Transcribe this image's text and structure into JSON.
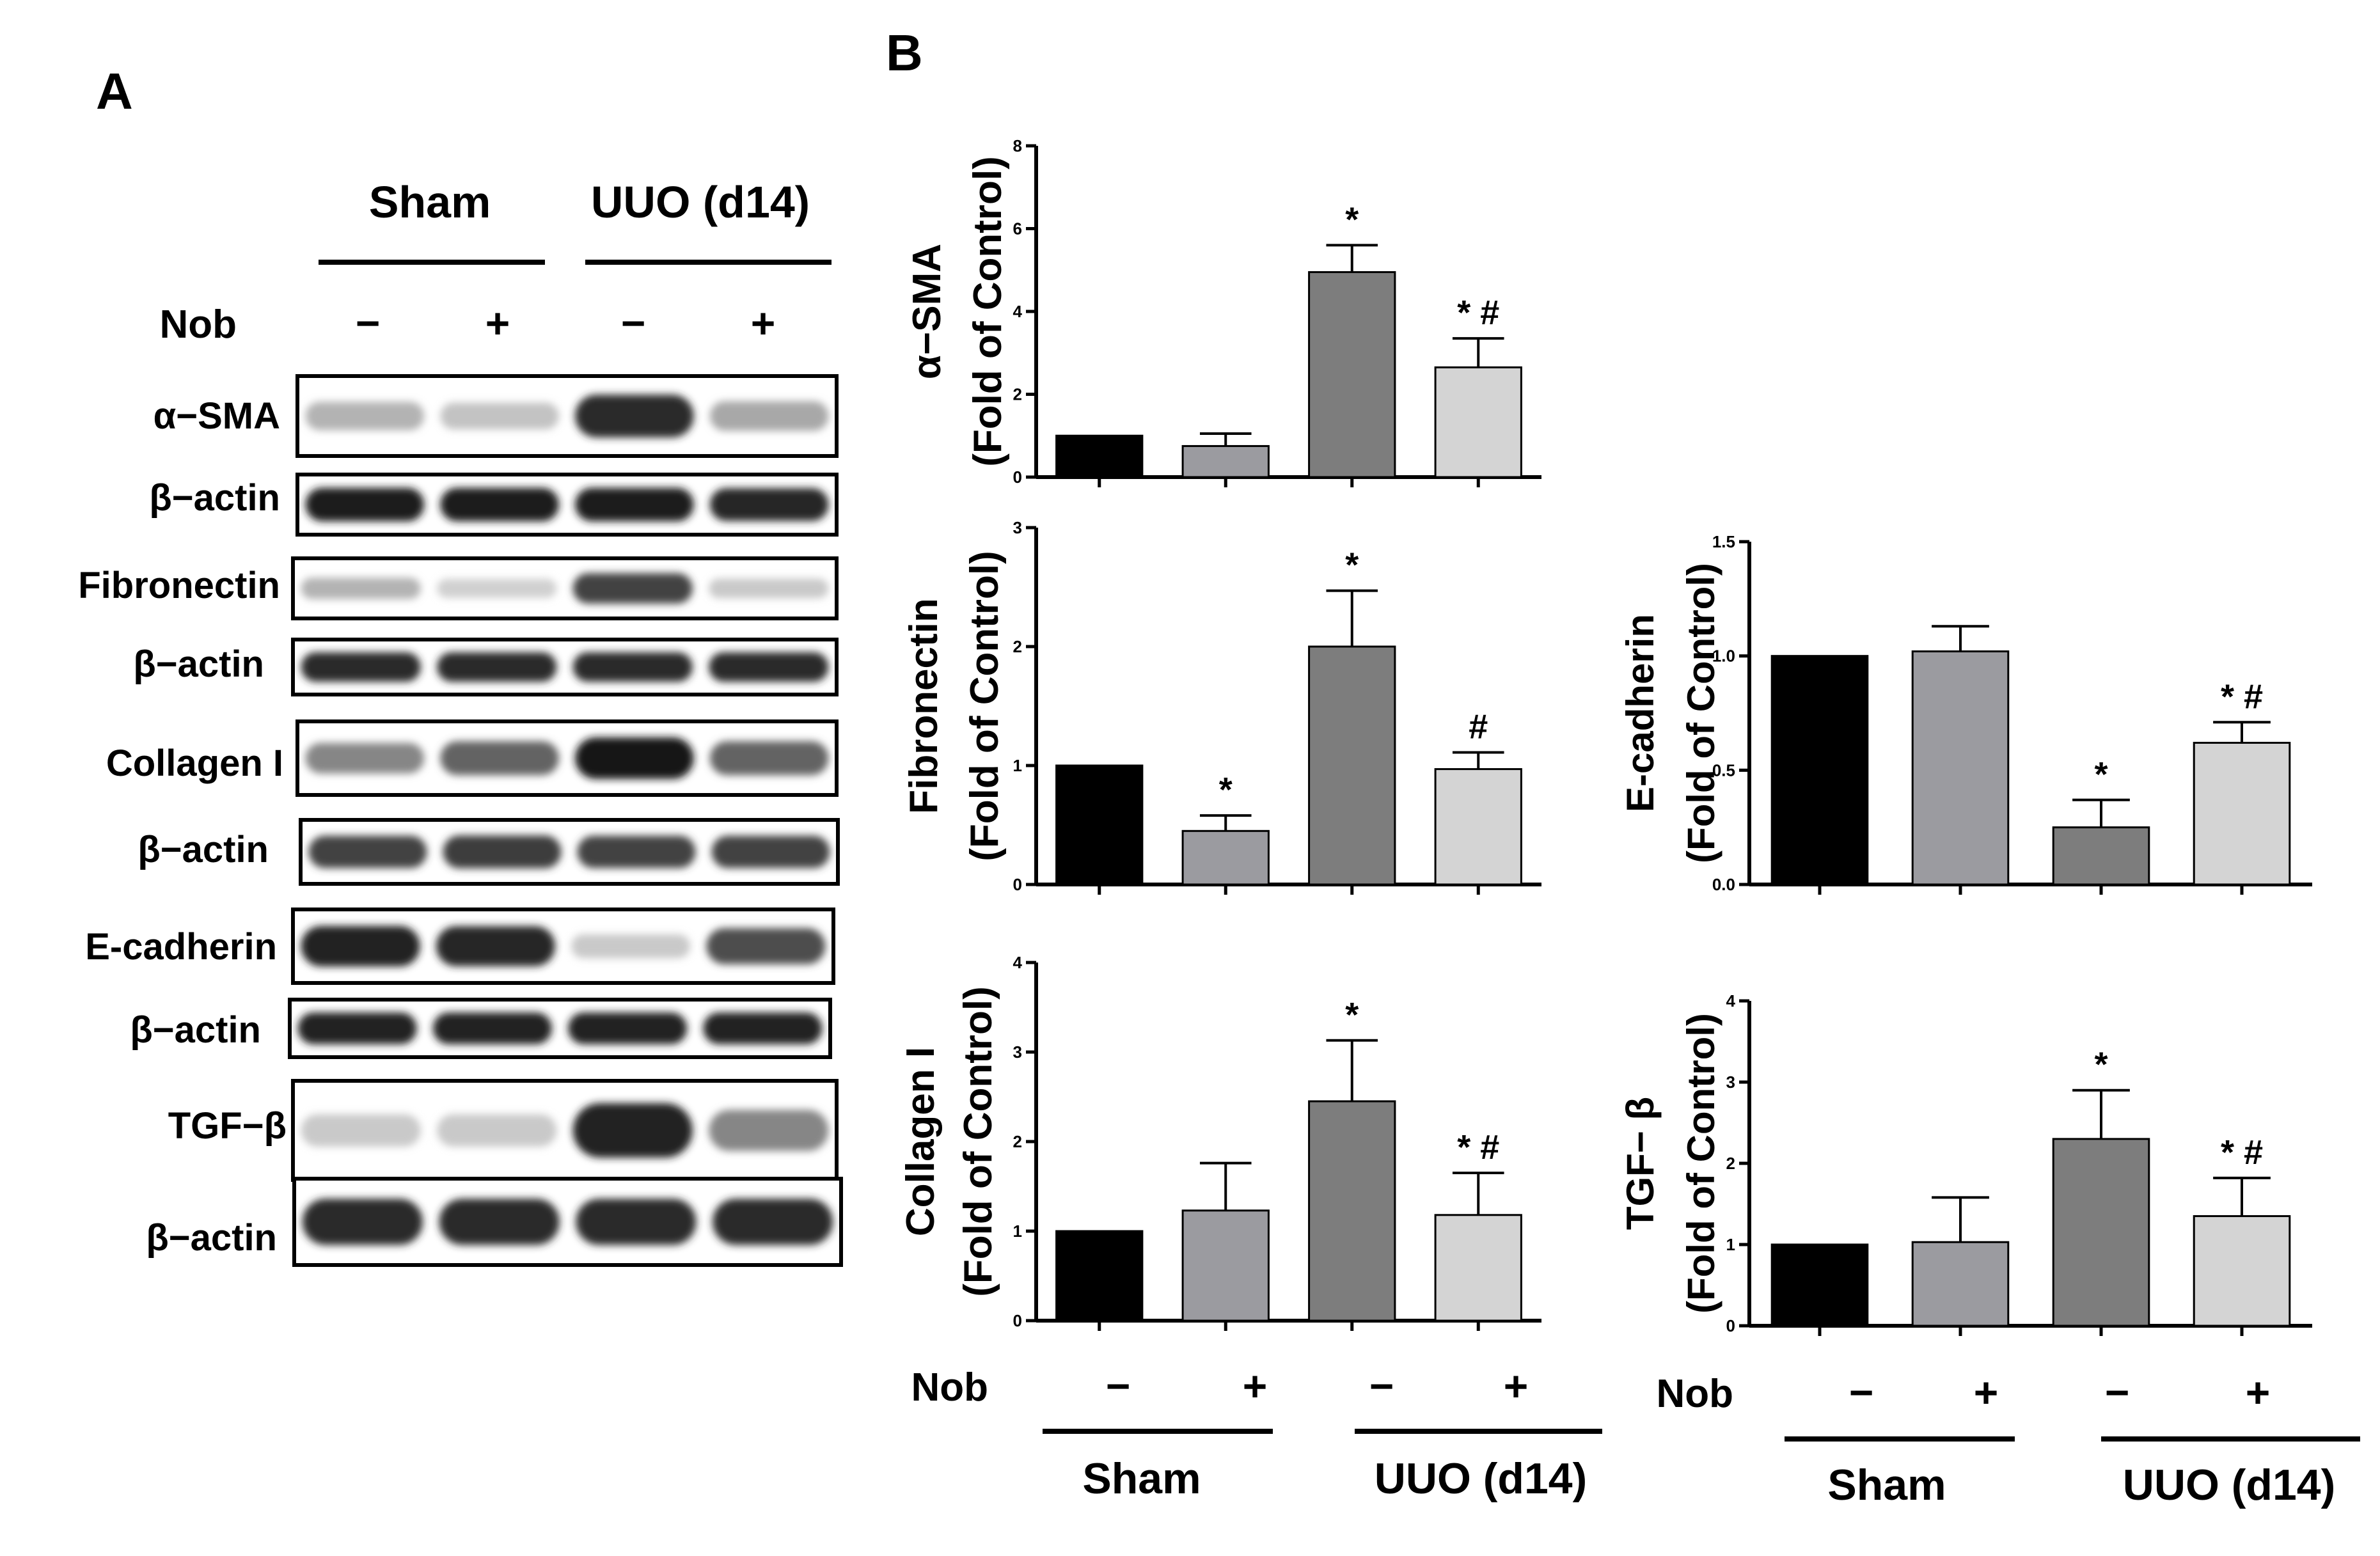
{
  "panel_a": {
    "label": "A",
    "group_labels": [
      "Sham",
      "UUO (d14)"
    ],
    "treatment_label": "Nob",
    "treatment_signs": [
      "−",
      "+",
      "−",
      "+"
    ],
    "blots": [
      {
        "label": "α−SMA",
        "intensity": [
          0.25,
          0.18,
          0.85,
          0.3
        ]
      },
      {
        "label": "β−actin",
        "intensity": [
          0.92,
          0.92,
          0.92,
          0.88
        ]
      },
      {
        "label": "Fibronectin",
        "intensity": [
          0.25,
          0.12,
          0.75,
          0.15
        ]
      },
      {
        "label": "β−actin",
        "intensity": [
          0.85,
          0.85,
          0.85,
          0.85
        ]
      },
      {
        "label": "Collagen I",
        "intensity": [
          0.45,
          0.6,
          0.95,
          0.6
        ]
      },
      {
        "label": "β−actin",
        "intensity": [
          0.75,
          0.78,
          0.75,
          0.75
        ]
      },
      {
        "label": "E-cadherin",
        "intensity": [
          0.9,
          0.88,
          0.15,
          0.7
        ]
      },
      {
        "label": "β−actin",
        "intensity": [
          0.9,
          0.9,
          0.9,
          0.9
        ]
      },
      {
        "label": "TGF−β",
        "intensity": [
          0.15,
          0.15,
          0.9,
          0.45
        ]
      },
      {
        "label": "β−actin",
        "intensity": [
          0.85,
          0.85,
          0.85,
          0.85
        ]
      }
    ]
  },
  "panel_b": {
    "label": "B",
    "treatment_label": "Nob",
    "treatment_signs": [
      "−",
      "+",
      "−",
      "+"
    ],
    "group_labels": [
      "Sham",
      "UUO (d14)"
    ]
  },
  "colors": {
    "sham_control": "#000000",
    "sham_nob": "#9b9ba0",
    "uuo_control": "#7d7d7d",
    "uuo_nob": "#d4d4d4"
  },
  "chart_data": [
    {
      "type": "bar",
      "ylabel": [
        "α−SMA",
        "(Fold of Control)"
      ],
      "ylim": [
        0,
        8
      ],
      "yticks": [
        "0",
        "2",
        "4",
        "6",
        "8"
      ],
      "categories": [
        "Sham −",
        "Sham +",
        "UUO (d14) −",
        "UUO (d14) +"
      ],
      "values": [
        1.0,
        0.75,
        4.95,
        2.65
      ],
      "errors": [
        0.0,
        0.3,
        0.65,
        0.7
      ],
      "annotations": [
        "",
        "",
        "*",
        "* #"
      ]
    },
    {
      "type": "bar",
      "ylabel": [
        "Fibronectin",
        "(Fold of Control)"
      ],
      "ylim": [
        0,
        3
      ],
      "yticks": [
        "0",
        "1",
        "2",
        "3"
      ],
      "categories": [
        "Sham −",
        "Sham +",
        "UUO (d14) −",
        "UUO (d14) +"
      ],
      "values": [
        1.0,
        0.45,
        2.0,
        0.97
      ],
      "errors": [
        0.0,
        0.13,
        0.47,
        0.14
      ],
      "annotations": [
        "",
        "*",
        "*",
        "#"
      ]
    },
    {
      "type": "bar",
      "ylabel": [
        "E-cadherin",
        "(Fold of Control)"
      ],
      "ylim": [
        0,
        1.5
      ],
      "yticks": [
        "0.0",
        "0.5",
        "1.0",
        "1.5"
      ],
      "categories": [
        "Sham −",
        "Sham +",
        "UUO (d14) −",
        "UUO (d14) +"
      ],
      "values": [
        1.0,
        1.02,
        0.25,
        0.62
      ],
      "errors": [
        0.0,
        0.11,
        0.12,
        0.09
      ],
      "annotations": [
        "",
        "",
        "*",
        "* #"
      ]
    },
    {
      "type": "bar",
      "ylabel": [
        "Collagen I",
        "(Fold of Control)"
      ],
      "ylim": [
        0,
        4
      ],
      "yticks": [
        "0",
        "1",
        "2",
        "3",
        "4"
      ],
      "categories": [
        "Sham −",
        "Sham +",
        "UUO (d14) −",
        "UUO (d14) +"
      ],
      "values": [
        1.0,
        1.23,
        2.45,
        1.18
      ],
      "errors": [
        0.0,
        0.53,
        0.68,
        0.47
      ],
      "annotations": [
        "",
        "",
        "*",
        "* #"
      ]
    },
    {
      "type": "bar",
      "ylabel": [
        "TGF− β",
        "(Fold of Control)"
      ],
      "ylim": [
        0,
        4
      ],
      "yticks": [
        "0",
        "1",
        "2",
        "3",
        "4"
      ],
      "categories": [
        "Sham −",
        "Sham +",
        "UUO (d14) −",
        "UUO (d14) +"
      ],
      "values": [
        1.0,
        1.03,
        2.3,
        1.35
      ],
      "errors": [
        0.0,
        0.55,
        0.6,
        0.47
      ],
      "annotations": [
        "",
        "",
        "*",
        "* #"
      ]
    }
  ]
}
